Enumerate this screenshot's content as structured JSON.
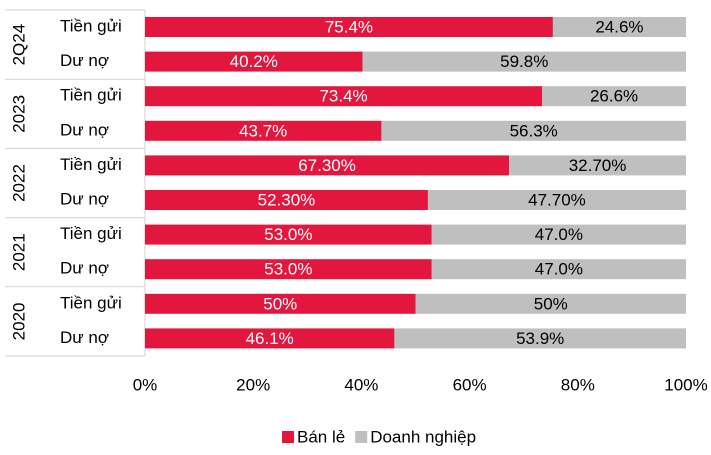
{
  "chart_data": {
    "type": "stacked-barh",
    "groups": [
      "2Q24",
      "2023",
      "2022",
      "2021",
      "2020"
    ],
    "categories": [
      "Tiền gửi",
      "Dư nợ",
      "Tiền gửi",
      "Dư nợ",
      "Tiền gửi",
      "Dư nợ",
      "Tiền gửi",
      "Dư nợ",
      "Tiền gửi",
      "Dư nợ"
    ],
    "series": [
      {
        "name": "Bán lẻ",
        "color": "#e3173e",
        "values": [
          75.4,
          40.2,
          73.4,
          43.7,
          67.3,
          52.3,
          53.0,
          53.0,
          50,
          46.1
        ],
        "value_labels": [
          "75.4%",
          "40.2%",
          "73.4%",
          "43.7%",
          "67.30%",
          "52.30%",
          "53.0%",
          "53.0%",
          "50%",
          "46.1%"
        ]
      },
      {
        "name": "Doanh nghiệp",
        "color": "#bfbfbf",
        "values": [
          24.6,
          59.8,
          26.6,
          56.3,
          32.7,
          47.7,
          47.0,
          47.0,
          50,
          53.9
        ],
        "value_labels": [
          "24.6%",
          "59.8%",
          "26.6%",
          "56.3%",
          "32.70%",
          "47.70%",
          "47.0%",
          "47.0%",
          "50%",
          "53.9%"
        ]
      }
    ],
    "xlim": [
      0,
      100
    ],
    "xticks": [
      {
        "value": 0,
        "label": "0%"
      },
      {
        "value": 20,
        "label": "20%"
      },
      {
        "value": 40,
        "label": "40%"
      },
      {
        "value": 60,
        "label": "60%"
      },
      {
        "value": 80,
        "label": "80%"
      },
      {
        "value": 100,
        "label": "100%"
      }
    ],
    "legend": "bottom"
  }
}
